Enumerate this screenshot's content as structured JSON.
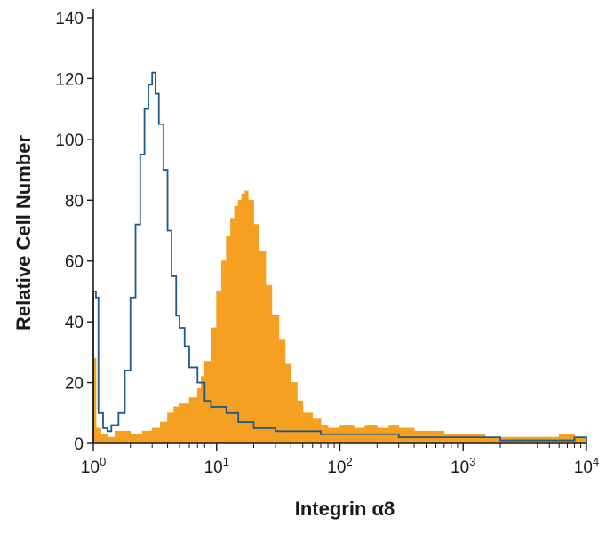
{
  "chart_data": {
    "type": "area",
    "xscale": "log",
    "xlim": [
      1,
      10000
    ],
    "ylim": [
      0,
      140
    ],
    "xlabel": "Integrin α8",
    "ylabel": "Relative Cell Number",
    "grid": false,
    "legend": "none",
    "y_ticks": [
      0,
      20,
      40,
      60,
      80,
      100,
      120,
      140
    ],
    "x_ticks": [
      {
        "value": 1,
        "base": "10",
        "exp": "0"
      },
      {
        "value": 10,
        "base": "10",
        "exp": "1"
      },
      {
        "value": 100,
        "base": "10",
        "exp": "2"
      },
      {
        "value": 1000,
        "base": "10",
        "exp": "3"
      },
      {
        "value": 10000,
        "base": "10",
        "exp": "4"
      }
    ],
    "series": [
      {
        "style": "filled",
        "color": "#F5A020",
        "points": [
          [
            1.0,
            28
          ],
          [
            1.05,
            5
          ],
          [
            1.15,
            3
          ],
          [
            1.3,
            2
          ],
          [
            1.5,
            4
          ],
          [
            2.0,
            3
          ],
          [
            2.5,
            4
          ],
          [
            3.0,
            5
          ],
          [
            3.5,
            7
          ],
          [
            4.0,
            10
          ],
          [
            4.5,
            12
          ],
          [
            5.0,
            13
          ],
          [
            6.0,
            15
          ],
          [
            7.0,
            18
          ],
          [
            7.5,
            22
          ],
          [
            8.0,
            27
          ],
          [
            9.0,
            38
          ],
          [
            10.0,
            50
          ],
          [
            11.0,
            60
          ],
          [
            12.0,
            68
          ],
          [
            13.0,
            74
          ],
          [
            14.0,
            78
          ],
          [
            15.0,
            80
          ],
          [
            16.0,
            82
          ],
          [
            17.0,
            83
          ],
          [
            18.0,
            80
          ],
          [
            20.0,
            72
          ],
          [
            22.0,
            63
          ],
          [
            25.0,
            52
          ],
          [
            28.0,
            42
          ],
          [
            32.0,
            34
          ],
          [
            36.0,
            26
          ],
          [
            40.0,
            20
          ],
          [
            45.0,
            14
          ],
          [
            50.0,
            10
          ],
          [
            60.0,
            8
          ],
          [
            70.0,
            6
          ],
          [
            80.0,
            5
          ],
          [
            100.0,
            6
          ],
          [
            130.0,
            5
          ],
          [
            160.0,
            6
          ],
          [
            200.0,
            5
          ],
          [
            250.0,
            6
          ],
          [
            300.0,
            5
          ],
          [
            400.0,
            4
          ],
          [
            500.0,
            4
          ],
          [
            700.0,
            3
          ],
          [
            1000.0,
            3
          ],
          [
            1500.0,
            2
          ],
          [
            2000.0,
            2
          ],
          [
            3000.0,
            2
          ],
          [
            5000.0,
            2
          ],
          [
            6000.0,
            3
          ],
          [
            7000.0,
            3
          ],
          [
            8000.0,
            2
          ],
          [
            10000.0,
            2
          ]
        ]
      },
      {
        "style": "outline",
        "color": "#1E5A85",
        "points": [
          [
            1.0,
            50
          ],
          [
            1.05,
            48
          ],
          [
            1.1,
            10
          ],
          [
            1.2,
            5
          ],
          [
            1.3,
            4
          ],
          [
            1.4,
            6
          ],
          [
            1.6,
            10
          ],
          [
            1.8,
            24
          ],
          [
            2.0,
            48
          ],
          [
            2.2,
            72
          ],
          [
            2.4,
            95
          ],
          [
            2.6,
            110
          ],
          [
            2.8,
            118
          ],
          [
            3.0,
            122
          ],
          [
            3.2,
            115
          ],
          [
            3.4,
            105
          ],
          [
            3.7,
            90
          ],
          [
            4.0,
            70
          ],
          [
            4.3,
            55
          ],
          [
            4.7,
            42
          ],
          [
            5.0,
            38
          ],
          [
            5.5,
            32
          ],
          [
            6.0,
            25
          ],
          [
            7.0,
            20
          ],
          [
            8.0,
            14
          ],
          [
            9.0,
            12
          ],
          [
            10.0,
            12
          ],
          [
            12.0,
            10
          ],
          [
            15.0,
            7
          ],
          [
            20.0,
            5
          ],
          [
            25.0,
            5
          ],
          [
            30.0,
            4
          ],
          [
            40.0,
            4
          ],
          [
            50.0,
            4
          ],
          [
            70.0,
            3
          ],
          [
            100.0,
            3
          ],
          [
            150.0,
            3
          ],
          [
            200.0,
            3
          ],
          [
            300.0,
            2
          ],
          [
            500.0,
            2
          ],
          [
            1000.0,
            2
          ],
          [
            2000.0,
            1
          ],
          [
            5000.0,
            1
          ],
          [
            8000.0,
            2
          ],
          [
            10000.0,
            1
          ]
        ]
      }
    ]
  }
}
